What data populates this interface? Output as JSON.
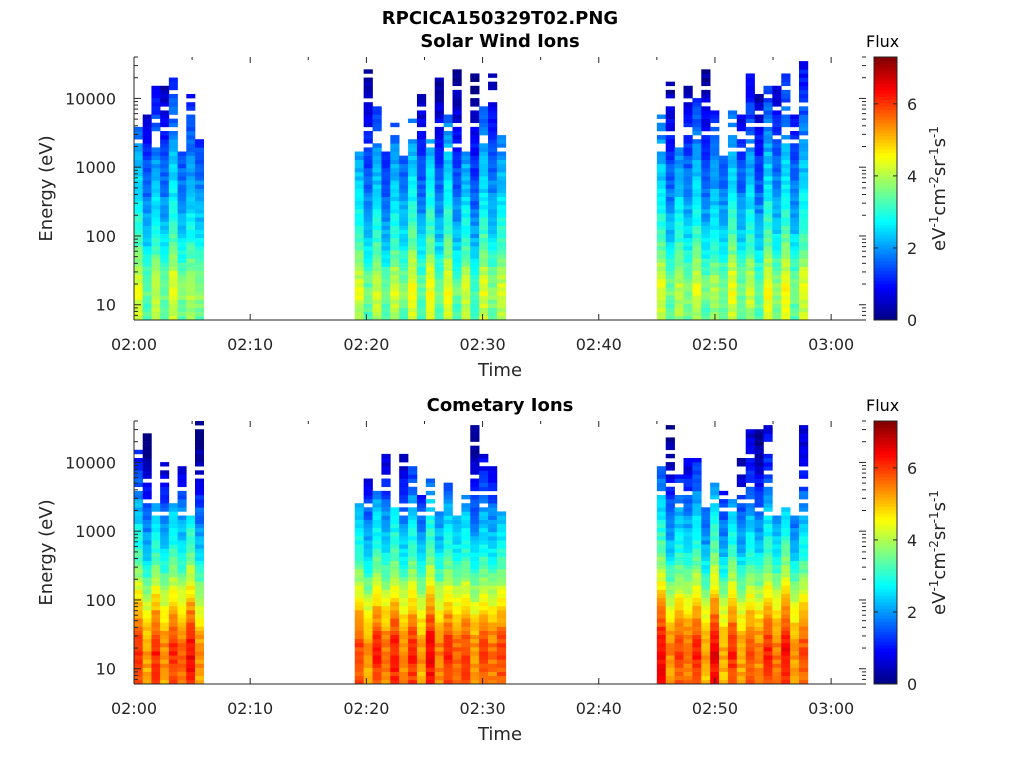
{
  "figure_title": "RPCICA150329T02.PNG",
  "chart_data": [
    {
      "type": "heatmap",
      "title": "Solar Wind Ions",
      "xlabel": "Time",
      "ylabel": "Energy (eV)",
      "x_ticks": [
        "02:00",
        "02:10",
        "02:20",
        "02:30",
        "02:40",
        "02:50",
        "03:00"
      ],
      "y_ticks": [
        "10",
        "100",
        "1000",
        "10000"
      ],
      "y_scale": "log",
      "y_range_eV": [
        6,
        40000
      ],
      "x_range": [
        "02:00",
        "03:03"
      ],
      "colorbar": {
        "label": "Flux",
        "unit": "eV-1cm-2sr-1s-1",
        "ticks": [
          "0",
          "2",
          "4",
          "6"
        ],
        "range": [
          0,
          7.3
        ],
        "colormap": "jet"
      },
      "intervals": [
        {
          "start": "02:00",
          "end": "02:06"
        },
        {
          "start": "02:19",
          "end": "02:32"
        },
        {
          "start": "02:45",
          "end": "02:58"
        }
      ],
      "flux_profile": {
        "energy_eV": [
          8,
          15,
          30,
          60,
          120,
          250,
          500,
          1000,
          2000,
          4000,
          8000,
          16000,
          32000
        ],
        "flux": [
          3.6,
          3.9,
          3.6,
          3.0,
          2.6,
          2.3,
          2.0,
          1.8,
          1.5,
          1.2,
          0.9,
          0.6,
          0.4
        ]
      }
    },
    {
      "type": "heatmap",
      "title": "Cometary Ions",
      "xlabel": "Time",
      "ylabel": "Energy (eV)",
      "x_ticks": [
        "02:00",
        "02:10",
        "02:20",
        "02:30",
        "02:40",
        "02:50",
        "03:00"
      ],
      "y_ticks": [
        "10",
        "100",
        "1000",
        "10000"
      ],
      "y_scale": "log",
      "y_range_eV": [
        6,
        40000
      ],
      "x_range": [
        "02:00",
        "03:03"
      ],
      "colorbar": {
        "label": "Flux",
        "unit": "eV-1cm-2sr-1s-1",
        "ticks": [
          "0",
          "2",
          "4",
          "6"
        ],
        "range": [
          0,
          7.3
        ],
        "colormap": "jet"
      },
      "intervals": [
        {
          "start": "02:00",
          "end": "02:06"
        },
        {
          "start": "02:19",
          "end": "02:32"
        },
        {
          "start": "02:45",
          "end": "02:58"
        }
      ],
      "flux_profile": {
        "energy_eV": [
          8,
          15,
          30,
          60,
          120,
          250,
          500,
          1000,
          2000,
          4000,
          8000,
          16000,
          32000
        ],
        "flux": [
          5.6,
          5.8,
          5.6,
          5.0,
          4.3,
          3.5,
          2.8,
          2.4,
          2.0,
          1.4,
          0.9,
          0.6,
          0.4
        ]
      }
    }
  ]
}
